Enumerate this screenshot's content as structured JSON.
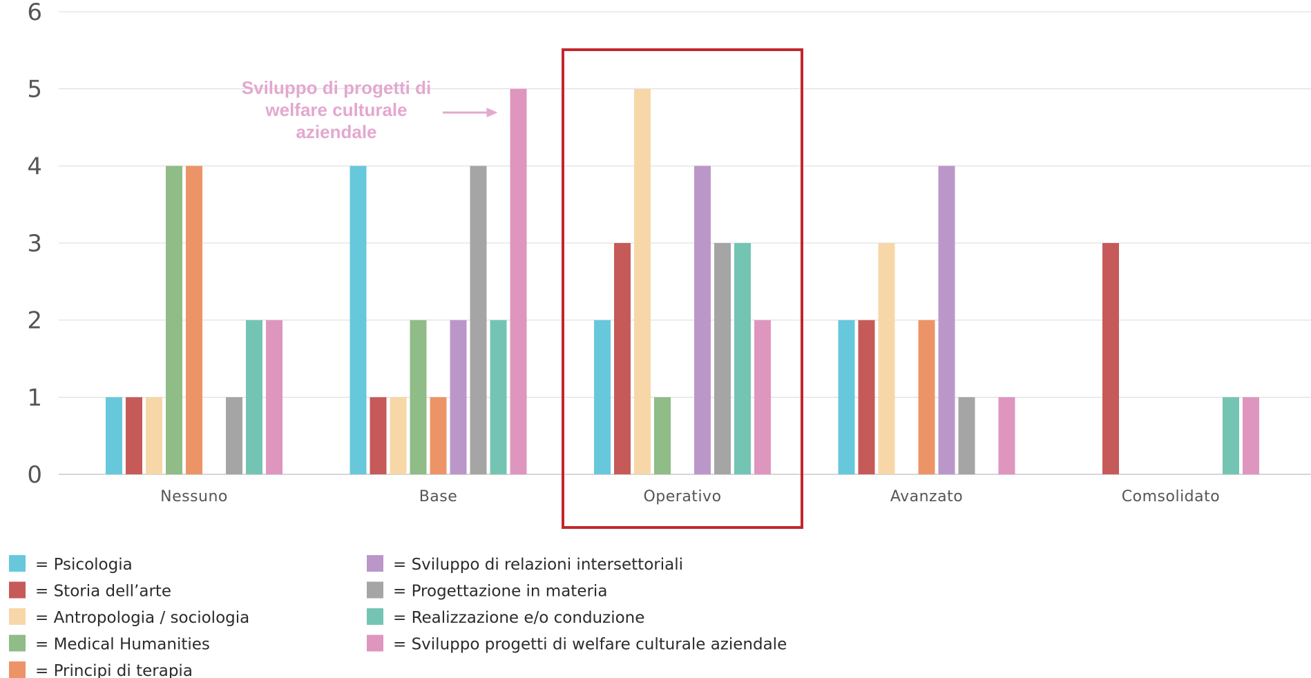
{
  "chart_data": {
    "type": "bar",
    "categories": [
      "Nessuno",
      "Base",
      "Operativo",
      "Avanzato",
      "Comsolidato"
    ],
    "ylim": [
      0,
      6
    ],
    "yticks": [
      0,
      1,
      2,
      3,
      4,
      5,
      6
    ],
    "grid": true,
    "legend_position": "bottom-left",
    "series": [
      {
        "name": "= Psicologia",
        "color": "#67c8dc",
        "values": [
          1,
          4,
          2,
          2,
          0
        ]
      },
      {
        "name": "= Storia dell’arte",
        "color": "#c65a58",
        "values": [
          1,
          1,
          3,
          2,
          3
        ]
      },
      {
        "name": "= Antropologia / sociologia",
        "color": "#f7d7a8",
        "values": [
          1,
          1,
          5,
          3,
          0
        ]
      },
      {
        "name": "= Medical Humanities",
        "color": "#8fbc87",
        "values": [
          4,
          2,
          1,
          0,
          0
        ]
      },
      {
        "name": "= Principi di terapia",
        "color": "#ec9468",
        "values": [
          4,
          1,
          0,
          2,
          0
        ]
      },
      {
        "name": "= Sviluppo di relazioni intersettoriali",
        "color": "#bb97c9",
        "values": [
          0,
          2,
          4,
          4,
          0
        ]
      },
      {
        "name": "= Progettazione in materia",
        "color": "#a5a5a5",
        "values": [
          1,
          4,
          3,
          1,
          0
        ]
      },
      {
        "name": "= Realizzazione e/o conduzione",
        "color": "#74c4b4",
        "values": [
          2,
          2,
          3,
          0,
          1
        ]
      },
      {
        "name": "= Sviluppo progetti di welfare culturale aziendale",
        "color": "#de96bf",
        "values": [
          2,
          5,
          2,
          1,
          1
        ]
      }
    ],
    "annotation": {
      "lines": [
        "Sviluppo di progetti di",
        "welfare culturale",
        "aziendale"
      ],
      "color": "#e3a8cf",
      "target_category": "Base",
      "target_series": 8
    },
    "highlight": {
      "category": "Operativo",
      "color": "#c1272d"
    }
  }
}
